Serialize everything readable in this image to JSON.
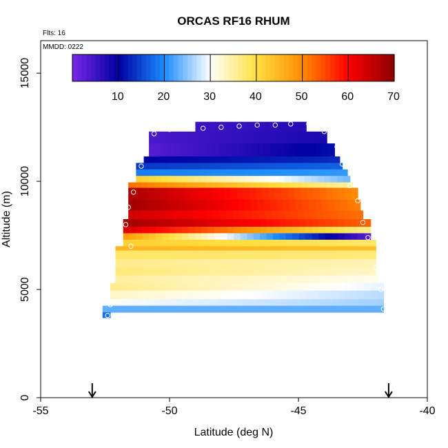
{
  "chart_data": {
    "type": "heatmap",
    "title": "ORCAS RF16 RHUM",
    "flights_label": "Flts: 16",
    "date_label": "MMDD: 0222",
    "xlabel": "Latitude (deg N)",
    "ylabel": "Altitude (m)",
    "xlim": [
      -55,
      -40
    ],
    "ylim": [
      0,
      16500
    ],
    "x_ticks": [
      -55,
      -50,
      -45,
      -40
    ],
    "y_ticks": [
      0,
      5000,
      10000,
      15000
    ],
    "colorbar": {
      "min": 0,
      "max": 70,
      "ticks": [
        10,
        20,
        30,
        40,
        50,
        60,
        70
      ],
      "colors": [
        "#7a28e8",
        "#0000a0",
        "#1a8cff",
        "#ffffff",
        "#ffe040",
        "#ff8c00",
        "#ff0000",
        "#8b0000"
      ]
    },
    "arrow_latitudes": [
      -53.0,
      -41.5
    ],
    "profile_points": [
      {
        "lat": -52.4,
        "alt": 3800
      },
      {
        "lat": -52.3,
        "alt": 4300
      },
      {
        "lat": -51.5,
        "alt": 7000
      },
      {
        "lat": -51.7,
        "alt": 8000
      },
      {
        "lat": -51.6,
        "alt": 8800
      },
      {
        "lat": -51.4,
        "alt": 9500
      },
      {
        "lat": -51.1,
        "alt": 10700
      },
      {
        "lat": -50.9,
        "alt": 11400
      },
      {
        "lat": -50.6,
        "alt": 12200
      },
      {
        "lat": -50.0,
        "alt": 12400
      },
      {
        "lat": -49.4,
        "alt": 12450
      },
      {
        "lat": -48.7,
        "alt": 12450
      },
      {
        "lat": -48.0,
        "alt": 12500
      },
      {
        "lat": -47.3,
        "alt": 12550
      },
      {
        "lat": -46.6,
        "alt": 12600
      },
      {
        "lat": -45.9,
        "alt": 12600
      },
      {
        "lat": -45.3,
        "alt": 12650
      },
      {
        "lat": -44.6,
        "alt": 12650
      },
      {
        "lat": -44.0,
        "alt": 12300
      },
      {
        "lat": -43.5,
        "alt": 11600
      },
      {
        "lat": -43.3,
        "alt": 10800
      },
      {
        "lat": -43.0,
        "alt": 9800
      },
      {
        "lat": -42.7,
        "alt": 9100
      },
      {
        "lat": -42.5,
        "alt": 8100
      },
      {
        "lat": -42.3,
        "alt": 7400
      },
      {
        "lat": -42.0,
        "alt": 6000
      },
      {
        "lat": -41.8,
        "alt": 5000
      },
      {
        "lat": -41.7,
        "alt": 4100
      }
    ],
    "layers": [
      {
        "alt_min": 12300,
        "alt_max": 12750,
        "lat_min": -49.0,
        "lat_max": -44.7,
        "rhum_south": 5,
        "rhum_north": 7
      },
      {
        "alt_min": 11750,
        "alt_max": 12300,
        "lat_min": -50.8,
        "lat_max": -43.9,
        "rhum_south": 4,
        "rhum_north": 8
      },
      {
        "alt_min": 11150,
        "alt_max": 11750,
        "lat_min": -50.8,
        "lat_max": -43.6,
        "rhum_south": 3,
        "rhum_north": 11
      },
      {
        "alt_min": 10850,
        "alt_max": 11150,
        "lat_min": -51.0,
        "lat_max": -43.4,
        "rhum_south": 10,
        "rhum_north": 13
      },
      {
        "alt_min": 10550,
        "alt_max": 10850,
        "lat_min": -51.3,
        "lat_max": -43.3,
        "rhum_south": 14,
        "rhum_north": 17
      },
      {
        "alt_min": 10250,
        "alt_max": 10550,
        "lat_min": -51.3,
        "lat_max": -43.1,
        "rhum_south": 19,
        "rhum_north": 21
      },
      {
        "alt_min": 9950,
        "alt_max": 10250,
        "lat_min": -51.3,
        "lat_max": -43.0,
        "rhum_south": 42,
        "rhum_north": 24
      },
      {
        "alt_min": 9700,
        "alt_max": 9950,
        "lat_min": -51.6,
        "lat_max": -42.9,
        "rhum_south": 52,
        "rhum_north": 35
      },
      {
        "alt_min": 9150,
        "alt_max": 9700,
        "lat_min": -51.6,
        "lat_max": -42.7,
        "rhum_south": 67,
        "rhum_north": 50
      },
      {
        "alt_min": 8650,
        "alt_max": 9150,
        "lat_min": -51.6,
        "lat_max": -42.6,
        "rhum_south": 68,
        "rhum_north": 51
      },
      {
        "alt_min": 8250,
        "alt_max": 8650,
        "lat_min": -51.6,
        "lat_max": -42.5,
        "rhum_south": 64,
        "rhum_north": 52
      },
      {
        "alt_min": 7900,
        "alt_max": 8250,
        "lat_min": -51.8,
        "lat_max": -42.2,
        "rhum_south": 68,
        "rhum_north": 53
      },
      {
        "alt_min": 7600,
        "alt_max": 7900,
        "lat_min": -51.8,
        "lat_max": -42.2,
        "rhum_south": 63,
        "rhum_north": 36
      },
      {
        "alt_min": 7300,
        "alt_max": 7600,
        "lat_min": -51.8,
        "lat_max": -42.2,
        "rhum_south": 48,
        "rhum_north": 3
      },
      {
        "alt_min": 7000,
        "alt_max": 7300,
        "lat_min": -51.8,
        "lat_max": -42.0,
        "rhum_south": 42,
        "rhum_north": 38
      },
      {
        "alt_min": 6800,
        "alt_max": 7000,
        "lat_min": -52.1,
        "lat_max": -42.0,
        "rhum_south": 45,
        "rhum_north": 44
      },
      {
        "alt_min": 6400,
        "alt_max": 6800,
        "lat_min": -52.1,
        "lat_max": -42.0,
        "rhum_south": 38,
        "rhum_north": 37
      },
      {
        "alt_min": 6000,
        "alt_max": 6400,
        "lat_min": -52.1,
        "lat_max": -42.0,
        "rhum_south": 36,
        "rhum_north": 34
      },
      {
        "alt_min": 5650,
        "alt_max": 6000,
        "lat_min": -52.1,
        "lat_max": -42.0,
        "rhum_south": 37,
        "rhum_north": 33
      },
      {
        "alt_min": 5300,
        "alt_max": 5650,
        "lat_min": -52.1,
        "lat_max": -41.9,
        "rhum_south": 35,
        "rhum_north": 31
      },
      {
        "alt_min": 4950,
        "alt_max": 5300,
        "lat_min": -52.3,
        "lat_max": -41.7,
        "rhum_south": 36,
        "rhum_north": 29
      },
      {
        "alt_min": 4550,
        "alt_max": 4950,
        "lat_min": -52.3,
        "lat_max": -41.7,
        "rhum_south": 33,
        "rhum_north": 27
      },
      {
        "alt_min": 4250,
        "alt_max": 4550,
        "lat_min": -52.6,
        "lat_max": -41.7,
        "rhum_south": 30,
        "rhum_north": 26
      },
      {
        "alt_min": 3950,
        "alt_max": 4250,
        "lat_min": -52.6,
        "lat_max": -41.7,
        "rhum_south": 23,
        "rhum_north": 23
      },
      {
        "alt_min": 3700,
        "alt_max": 3950,
        "lat_min": -52.6,
        "lat_max": -52.3,
        "rhum_south": 18,
        "rhum_north": 18
      }
    ]
  }
}
